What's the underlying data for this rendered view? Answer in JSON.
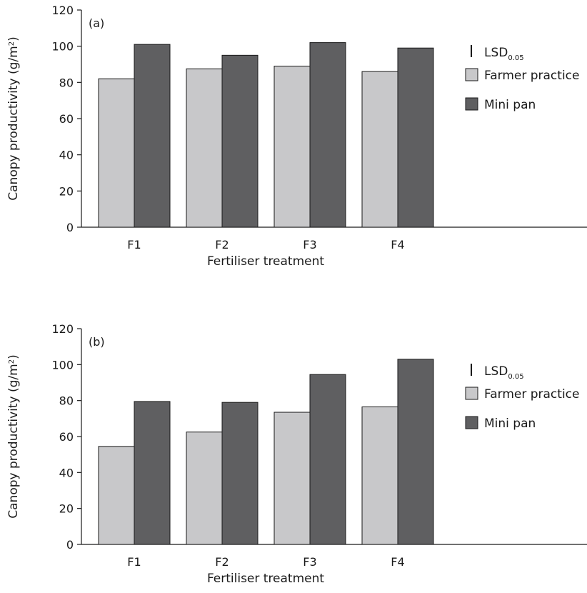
{
  "chart_data": [
    {
      "type": "bar",
      "panel_label": "(a)",
      "categories": [
        "F1",
        "F2",
        "F3",
        "F4"
      ],
      "series": [
        {
          "name": "Farmer practice",
          "color": "#c8c8ca",
          "values": [
            82,
            87.5,
            89,
            86
          ]
        },
        {
          "name": "Mini pan",
          "color": "#5f5f61",
          "values": [
            101,
            95,
            102,
            99
          ]
        }
      ],
      "xlabel": "Fertiliser treatment",
      "ylabel_main": "Canopy productivity (g/m",
      "ylabel_sup": "2",
      "ylabel_end": ")",
      "ylim": [
        0,
        120
      ],
      "yticks": [
        "0",
        "20",
        "40",
        "60",
        "80",
        "100",
        "120"
      ],
      "legend_lsd_main": "LSD",
      "legend_lsd_sub": "0.05",
      "legend_placement": "right",
      "grid": false
    },
    {
      "type": "bar",
      "panel_label": "(b)",
      "categories": [
        "F1",
        "F2",
        "F3",
        "F4"
      ],
      "series": [
        {
          "name": "Farmer practice",
          "color": "#c8c8ca",
          "values": [
            54.5,
            62.5,
            73.5,
            76.5
          ]
        },
        {
          "name": "Mini pan",
          "color": "#5f5f61",
          "values": [
            79.5,
            79,
            94.5,
            103
          ]
        }
      ],
      "xlabel": "Fertiliser treatment",
      "ylabel_main": "Canopy productivity (g/m",
      "ylabel_sup": "2",
      "ylabel_end": ")",
      "ylim": [
        0,
        120
      ],
      "yticks": [
        "0",
        "20",
        "40",
        "60",
        "80",
        "100",
        "120"
      ],
      "legend_lsd_main": "LSD",
      "legend_lsd_sub": "0.05",
      "legend_placement": "right",
      "grid": false
    }
  ]
}
